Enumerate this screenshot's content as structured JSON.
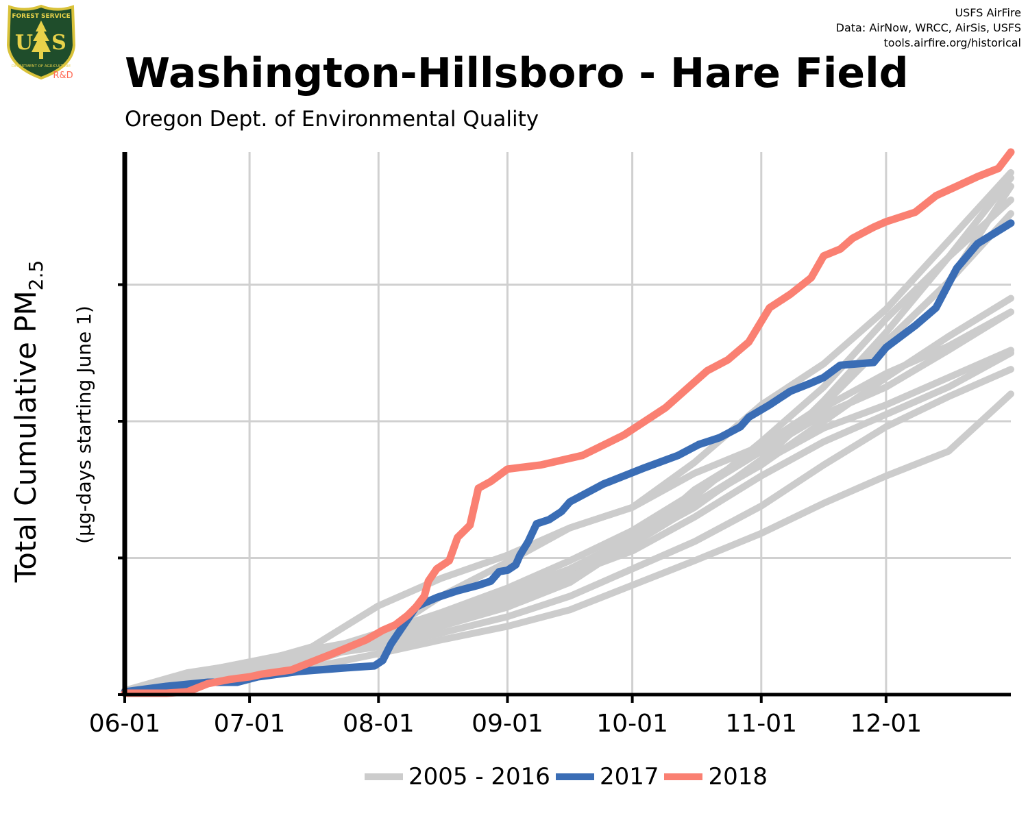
{
  "header": {
    "title": "Washington-Hillsboro - Hare Field",
    "subtitle": "Oregon Dept. of Environmental Quality",
    "credits": [
      "USFS AirFire",
      "Data: AirNow, WRCC, AirSis, USFS",
      "tools.airfire.org/historical"
    ]
  },
  "logo": {
    "top_text": "FOREST SERVICE",
    "mid_text": "U S",
    "bottom_text": "DEPARTMENT OF AGRICULTURE",
    "badge": "R&D",
    "colors": {
      "shield": "#1f4d2b",
      "border": "#d9c23a",
      "text": "#e8d24a",
      "badge": "#ff6a55"
    }
  },
  "chart_data": {
    "type": "line",
    "title": "Washington-Hillsboro - Hare Field",
    "subtitle": "Oregon Dept. of Environmental Quality",
    "xlabel": "",
    "ylabel": "Total Cumulative PM",
    "ylabel_subscript": "2.5",
    "ylabel_sub": "(µg-days starting June 1)",
    "x_ticks": [
      "06-01",
      "07-01",
      "08-01",
      "09-01",
      "10-01",
      "11-01",
      "12-01"
    ],
    "x_tick_days": [
      0,
      30,
      61,
      92,
      122,
      153,
      183
    ],
    "xlim": [
      0,
      213
    ],
    "ylim": [
      0,
      397
    ],
    "y_gridlines": [
      0,
      100,
      200,
      300
    ],
    "grid": true,
    "legend_position": "bottom",
    "colors": {
      "2005 - 2016": "#cccccc",
      "2017": "#3a6db5",
      "2018": "#fa8072"
    },
    "legend": [
      {
        "label": "2005 - 2016",
        "color": "#cccccc"
      },
      {
        "label": "2017",
        "color": "#3a6db5"
      },
      {
        "label": "2018",
        "color": "#fa8072"
      }
    ],
    "series": [
      {
        "group": "2005 - 2016",
        "x": [
          0,
          15,
          30,
          45,
          61,
          76,
          92,
          107,
          122,
          137,
          153,
          168,
          183,
          198,
          213
        ],
        "y": [
          3,
          16,
          23,
          32,
          42,
          72,
          97,
          122,
          137,
          170,
          212,
          242,
          282,
          332,
          382
        ]
      },
      {
        "group": "2005 - 2016",
        "x": [
          0,
          15,
          30,
          45,
          61,
          76,
          92,
          107,
          122,
          137,
          153,
          168,
          183,
          198,
          213
        ],
        "y": [
          2,
          14,
          22,
          35,
          65,
          85,
          102,
          122,
          137,
          162,
          182,
          212,
          258,
          302,
          352
        ]
      },
      {
        "group": "2005 - 2016",
        "x": [
          0,
          15,
          30,
          45,
          61,
          76,
          92,
          107,
          122,
          137,
          153,
          168,
          183,
          198,
          213
        ],
        "y": [
          1,
          10,
          18,
          26,
          38,
          50,
          64,
          82,
          112,
          137,
          172,
          212,
          258,
          302,
          372
        ]
      },
      {
        "group": "2005 - 2016",
        "x": [
          0,
          15,
          30,
          45,
          61,
          76,
          92,
          107,
          122,
          137,
          153,
          168,
          183,
          198,
          213
        ],
        "y": [
          2,
          12,
          20,
          28,
          35,
          45,
          57,
          72,
          92,
          112,
          138,
          168,
          196,
          218,
          238
        ]
      },
      {
        "group": "2005 - 2016",
        "x": [
          0,
          15,
          30,
          45,
          61,
          76,
          92,
          107,
          122,
          137,
          153,
          168,
          183,
          198,
          213
        ],
        "y": [
          1,
          9,
          16,
          24,
          40,
          55,
          70,
          88,
          110,
          140,
          170,
          195,
          212,
          232,
          252
        ]
      },
      {
        "group": "2005 - 2016",
        "x": [
          0,
          15,
          30,
          45,
          61,
          76,
          92,
          107,
          122,
          137,
          153,
          168,
          183,
          198,
          213
        ],
        "y": [
          1,
          8,
          14,
          20,
          30,
          40,
          50,
          62,
          80,
          98,
          118,
          140,
          160,
          178,
          220
        ]
      },
      {
        "group": "2005 - 2016",
        "x": [
          0,
          15,
          30,
          45,
          61,
          76,
          92,
          107,
          122,
          137,
          153,
          168,
          183,
          198,
          213
        ],
        "y": [
          2,
          11,
          19,
          28,
          40,
          52,
          72,
          90,
          110,
          150,
          180,
          210,
          235,
          255,
          280
        ]
      },
      {
        "group": "2005 - 2016",
        "x": [
          0,
          15,
          30,
          45,
          61,
          76,
          92,
          107,
          122,
          137,
          153,
          168,
          183,
          198,
          213
        ],
        "y": [
          2,
          12,
          21,
          30,
          45,
          60,
          78,
          98,
          120,
          148,
          178,
          205,
          225,
          252,
          280
        ]
      },
      {
        "group": "2005 - 2016",
        "x": [
          0,
          15,
          30,
          45,
          61,
          76,
          92,
          107,
          122,
          137,
          153,
          168,
          183,
          198,
          213
        ],
        "y": [
          1,
          10,
          18,
          26,
          42,
          58,
          75,
          92,
          115,
          145,
          185,
          225,
          275,
          320,
          362
        ]
      },
      {
        "group": "2005 - 2016",
        "x": [
          0,
          15,
          30,
          45,
          61,
          76,
          92,
          107,
          122,
          137,
          153,
          168,
          183,
          198,
          213
        ],
        "y": [
          3,
          15,
          24,
          33,
          42,
          54,
          70,
          88,
          105,
          130,
          160,
          185,
          205,
          225,
          250
        ]
      },
      {
        "group": "2005 - 2016",
        "x": [
          0,
          15,
          30,
          45,
          61,
          76,
          92,
          107,
          122,
          137,
          153,
          168,
          183,
          198,
          213
        ],
        "y": [
          1,
          9,
          17,
          26,
          38,
          52,
          68,
          86,
          110,
          138,
          170,
          215,
          265,
          320,
          378
        ]
      },
      {
        "group": "2005 - 2016",
        "x": [
          0,
          15,
          30,
          45,
          61,
          76,
          92,
          107,
          122,
          137,
          153,
          168,
          183,
          198,
          213
        ],
        "y": [
          2,
          11,
          20,
          29,
          40,
          55,
          72,
          92,
          115,
          140,
          168,
          200,
          232,
          262,
          290
        ]
      },
      {
        "name": "2017",
        "x": [
          0,
          10,
          20,
          27,
          32,
          42,
          55,
          60,
          62,
          64,
          66,
          70,
          72,
          75,
          80,
          85,
          88,
          90,
          92,
          94,
          95,
          97,
          99,
          102,
          105,
          107,
          115,
          125,
          133,
          138,
          143,
          148,
          150,
          155,
          160,
          165,
          168,
          172,
          180,
          183,
          190,
          195,
          200,
          205,
          213
        ],
        "y": [
          2,
          6,
          9,
          9,
          13,
          17,
          20,
          21,
          25,
          37,
          46,
          64,
          67,
          71,
          76,
          80,
          83,
          90,
          91,
          95,
          102,
          112,
          125,
          128,
          134,
          141,
          154,
          166,
          175,
          183,
          188,
          196,
          203,
          212,
          222,
          228,
          232,
          241,
          243,
          254,
          270,
          283,
          312,
          330,
          345
        ]
      },
      {
        "name": "2018",
        "x": [
          0,
          10,
          15,
          20,
          25,
          30,
          33,
          40,
          50,
          58,
          62,
          65,
          68,
          70,
          72,
          73,
          75,
          78,
          80,
          83,
          85,
          88,
          92,
          100,
          110,
          120,
          130,
          140,
          145,
          150,
          155,
          160,
          165,
          168,
          172,
          175,
          180,
          183,
          190,
          195,
          200,
          205,
          210,
          213
        ],
        "y": [
          1,
          1,
          2,
          8,
          11,
          13,
          15,
          18,
          30,
          40,
          47,
          51,
          58,
          64,
          72,
          83,
          92,
          98,
          115,
          124,
          151,
          156,
          165,
          168,
          175,
          190,
          210,
          237,
          245,
          258,
          283,
          293,
          305,
          321,
          326,
          334,
          342,
          346,
          353,
          365,
          372,
          379,
          385,
          397
        ]
      }
    ]
  }
}
